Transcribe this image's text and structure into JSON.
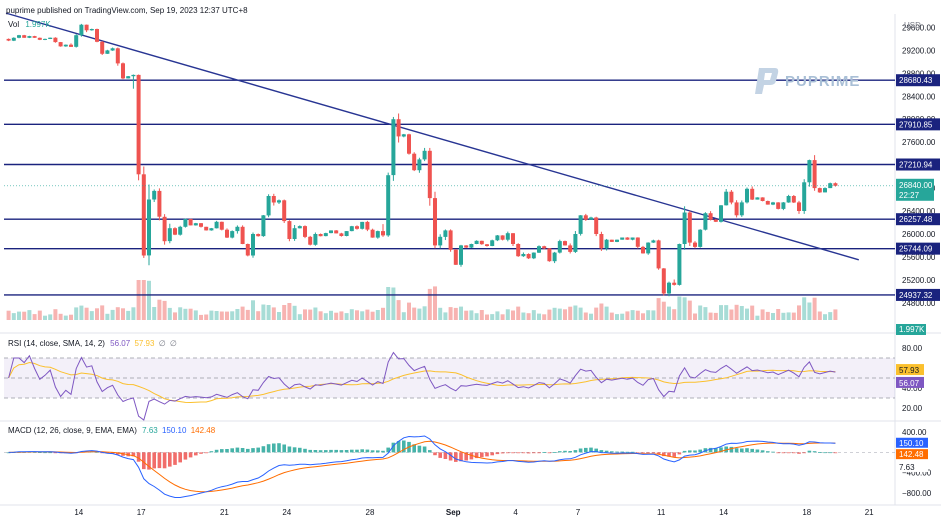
{
  "header": {
    "publisher": "puprime published on TradingView.com, Sep 19, 2023 12:37 UTC+8",
    "currency": "USD",
    "vol_label": "Vol",
    "vol_value": "1.997K",
    "rsi_label": "RSI (14, close, SMA, 14, 2)",
    "rsi_v1": "57.93",
    "rsi_v2": "56.07",
    "rsi_v3": "∅",
    "rsi_v4": "∅",
    "macd_label": "MACD (12, 26, close, 9, EMA, EMA)",
    "macd_v1": "7.63",
    "macd_v2": "150.10",
    "macd_v3": "142.48"
  },
  "brand": {
    "name": "PUPRIME"
  },
  "colors": {
    "up": "#26a69a",
    "down": "#ef5350",
    "level": "#1a237e",
    "trend": "#283593",
    "rsi_line": "#7e57c2",
    "rsi_ma": "#fbc02d",
    "macd_line": "#2962ff",
    "signal_line": "#ff6d00"
  },
  "chart_data": {
    "type": "candlestick",
    "title": "",
    "price_axis": {
      "ticks": [
        "29600.00",
        "29200.00",
        "28800.00",
        "28400.00",
        "28000.00",
        "27600.00",
        "27200.00",
        "26800.00",
        "26400.00",
        "26000.00",
        "25600.00",
        "25200.00",
        "24800.00"
      ],
      "range": [
        24500,
        29800
      ]
    },
    "horizontal_levels": [
      28680.43,
      27910.85,
      27210.94,
      26257.48,
      25744.09,
      24937.32
    ],
    "level_labels": [
      "28680.43",
      "27910.85",
      "27210.94",
      "26257.48",
      "25744.09",
      "24937.32"
    ],
    "current_price_label": "26840.00",
    "countdown_label": "22:27",
    "volume_label": "1.997K",
    "trendline": {
      "from": [
        "Aug 11",
        29850
      ],
      "to": [
        "Sep 21",
        25550
      ]
    },
    "x_ticks": [
      "14",
      "17",
      "21",
      "24",
      "28",
      "Sep",
      "4",
      "7",
      "11",
      "14",
      "18",
      "21"
    ],
    "daily_candles": [
      [
        "Aug 11",
        29400,
        29480,
        29360,
        29420
      ],
      [
        "Aug 12",
        29420,
        29460,
        29380,
        29400
      ],
      [
        "Aug 13",
        29400,
        29430,
        29260,
        29300
      ],
      [
        "Aug 14",
        29300,
        29680,
        29250,
        29550
      ],
      [
        "Aug 15",
        29550,
        29580,
        29120,
        29200
      ],
      [
        "Aug 16",
        29200,
        29250,
        28700,
        28750
      ],
      [
        "Aug 17",
        28750,
        28780,
        25300,
        26600
      ],
      [
        "Aug 18",
        26600,
        26800,
        25800,
        26100
      ],
      [
        "Aug 19",
        26100,
        26300,
        25950,
        26150
      ],
      [
        "Aug 20",
        26150,
        26200,
        26050,
        26100
      ],
      [
        "Aug 21",
        26100,
        26250,
        25900,
        26050
      ],
      [
        "Aug 22",
        26050,
        26150,
        25500,
        26000
      ],
      [
        "Aug 23",
        26000,
        26700,
        25950,
        26550
      ],
      [
        "Aug 24",
        26550,
        26600,
        25850,
        26100
      ],
      [
        "Aug 25",
        26100,
        26150,
        25750,
        26000
      ],
      [
        "Aug 26",
        26000,
        26080,
        25950,
        26010
      ],
      [
        "Aug 27",
        26010,
        26150,
        25950,
        26090
      ],
      [
        "Aug 28",
        26090,
        26250,
        25900,
        26050
      ],
      [
        "Aug 29",
        26050,
        28100,
        25950,
        27700
      ],
      [
        "Aug 30",
        27700,
        27750,
        27050,
        27300
      ],
      [
        "Aug 31",
        27300,
        27500,
        25750,
        25950
      ],
      [
        "Sep 1",
        25950,
        26100,
        25350,
        25800
      ],
      [
        "Sep 2",
        25800,
        25900,
        25750,
        25820
      ],
      [
        "Sep 3",
        25820,
        26000,
        25780,
        25900
      ],
      [
        "Sep 4",
        25900,
        26050,
        25600,
        25650
      ],
      [
        "Sep 5",
        25650,
        25800,
        25550,
        25750
      ],
      [
        "Sep 6",
        25750,
        25900,
        25450,
        25800
      ],
      [
        "Sep 7",
        25800,
        26350,
        25650,
        26250
      ],
      [
        "Sep 8",
        26250,
        26300,
        25700,
        25900
      ],
      [
        "Sep 9",
        25900,
        25950,
        25850,
        25900
      ],
      [
        "Sep 10",
        25900,
        25950,
        25600,
        25850
      ],
      [
        "Sep 11",
        25850,
        25900,
        24900,
        25150
      ],
      [
        "Sep 12",
        25150,
        26550,
        25100,
        25850
      ],
      [
        "Sep 13",
        25850,
        26400,
        25750,
        26250
      ],
      [
        "Sep 14",
        26250,
        26800,
        26200,
        26550
      ],
      [
        "Sep 15",
        26550,
        26850,
        26250,
        26600
      ],
      [
        "Sep 16",
        26600,
        26650,
        26500,
        26550
      ],
      [
        "Sep 17",
        26550,
        26700,
        26400,
        26550
      ],
      [
        "Sep 18",
        26550,
        27450,
        26350,
        26800
      ],
      [
        "Sep 19",
        26800,
        26900,
        26700,
        26840
      ]
    ],
    "rsi": {
      "ticks": [
        "80.00",
        "60.00",
        "40.00",
        "20.00"
      ],
      "range": [
        8,
        92
      ],
      "band": [
        70,
        30
      ],
      "value_labels": [
        "57.93",
        "56.07"
      ]
    },
    "macd": {
      "ticks": [
        "400.00",
        "0.00",
        "−400.00",
        "−800.00"
      ],
      "range": [
        -1000,
        560
      ],
      "value_labels": [
        "150.10",
        "142.48",
        "7.63"
      ]
    }
  }
}
